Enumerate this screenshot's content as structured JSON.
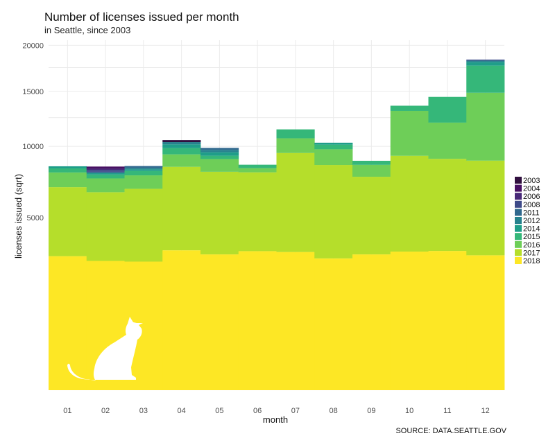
{
  "chart_data": {
    "type": "bar",
    "title": "Number of licenses issued per month",
    "subtitle": "in Seattle, since 2003",
    "xlabel": "month",
    "ylabel": "licenses issued (sqrt)",
    "y_scale": "sqrt",
    "ylim": [
      0,
      20000
    ],
    "y_ticks": [
      5000,
      10000,
      15000,
      20000
    ],
    "grid": true,
    "legend_position": "right",
    "caption": "SOURCE: DATA.SEATTLE.GOV",
    "categories": [
      "01",
      "02",
      "03",
      "04",
      "05",
      "06",
      "07",
      "08",
      "09",
      "10",
      "11",
      "12"
    ],
    "series": [
      {
        "name": "2018",
        "color": "#FDE725",
        "values": [
          3020,
          2810,
          2780,
          3290,
          3100,
          3250,
          3210,
          2920,
          3100,
          3230,
          3260,
          3060
        ]
      },
      {
        "name": "2017",
        "color": "#B5DE2B",
        "values": [
          3910,
          3780,
          4040,
          5100,
          4920,
          4730,
          6250,
          5610,
          4560,
          6010,
          5740,
          5800
        ]
      },
      {
        "name": "2016",
        "color": "#6ECE58",
        "values": [
          1040,
          950,
          940,
          960,
          960,
          310,
          1210,
          1230,
          880,
          3880,
          3040,
          6020
        ]
      },
      {
        "name": "2015",
        "color": "#35B779",
        "values": [
          300,
          280,
          320,
          500,
          270,
          260,
          770,
          380,
          310,
          490,
          2430,
          2840
        ]
      },
      {
        "name": "2014",
        "color": "#1F9E89",
        "values": [
          160,
          110,
          120,
          310,
          270,
          0,
          0,
          160,
          0,
          0,
          0,
          370
        ]
      },
      {
        "name": "2012",
        "color": "#26828E",
        "values": [
          0,
          0,
          110,
          190,
          190,
          0,
          0,
          0,
          0,
          0,
          0,
          180
        ]
      },
      {
        "name": "2011",
        "color": "#31688E",
        "values": [
          0,
          90,
          140,
          0,
          160,
          0,
          0,
          0,
          0,
          0,
          0,
          0
        ]
      },
      {
        "name": "2008",
        "color": "#3E4A89",
        "values": [
          0,
          140,
          0,
          0,
          0,
          0,
          0,
          0,
          0,
          0,
          0,
          110
        ]
      },
      {
        "name": "2006",
        "color": "#482878",
        "values": [
          0,
          90,
          0,
          0,
          0,
          0,
          0,
          0,
          0,
          0,
          0,
          0
        ]
      },
      {
        "name": "2004",
        "color": "#471063",
        "values": [
          0,
          160,
          0,
          0,
          0,
          0,
          0,
          0,
          0,
          0,
          0,
          0
        ]
      },
      {
        "name": "2003",
        "color": "#31103F",
        "values": [
          0,
          0,
          0,
          170,
          0,
          0,
          0,
          0,
          0,
          0,
          0,
          0
        ]
      }
    ]
  },
  "decoration": {
    "icon": "cat-silhouette-icon"
  }
}
